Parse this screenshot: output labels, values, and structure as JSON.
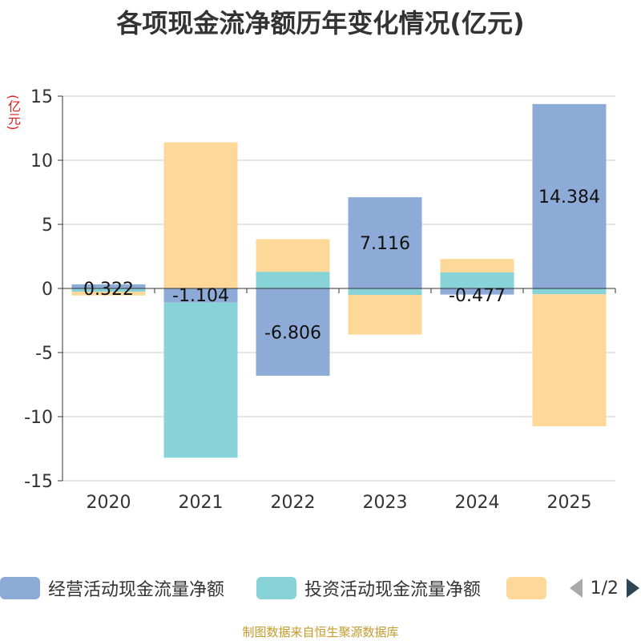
{
  "title": "各项现金流净额历年变化情况(亿元)",
  "unit_label": "(亿元)",
  "colors": {
    "operating": "#8eabd8",
    "investing": "#87d3d8",
    "financing": "#fdd898",
    "unit_text": "#e01e1e",
    "source_text": "#c49a2c"
  },
  "chart_data": {
    "type": "bar",
    "stacked": true,
    "title": "各项现金流净额历年变化情况(亿元)",
    "xlabel": "",
    "ylabel": "(亿元)",
    "ylim": [
      -15,
      15
    ],
    "yticks": [
      15,
      10,
      5,
      0,
      -5,
      -10,
      -15
    ],
    "grid": true,
    "categories": [
      "2020",
      "2021",
      "2022",
      "2023",
      "2024",
      "2025"
    ],
    "series": [
      {
        "name": "经营活动现金流量净额",
        "key": "operating",
        "values": [
          0.322,
          -1.104,
          -6.806,
          7.116,
          -0.477,
          14.384
        ],
        "labeled": true
      },
      {
        "name": "投资活动现金流量净额",
        "key": "investing",
        "values": [
          -0.25,
          -12.1,
          1.3,
          -0.5,
          1.25,
          -0.45
        ],
        "labeled": false
      },
      {
        "name": "",
        "key": "financing",
        "values": [
          -0.3,
          11.4,
          2.55,
          -3.1,
          1.05,
          -10.3
        ],
        "labeled": false
      }
    ],
    "data_labels": [
      "0.322",
      "-1.104",
      "-6.806",
      "7.116",
      "-0.477",
      "14.384"
    ]
  },
  "legend": {
    "items": [
      {
        "label": "经营活动现金流量净额",
        "icon": "legend-swatch"
      },
      {
        "label": "投资活动现金流量净额",
        "icon": "legend-swatch"
      },
      {
        "label": "",
        "icon": "legend-swatch"
      }
    ],
    "page_text": "1/2",
    "prev_icon": "triangle-left-icon",
    "next_icon": "triangle-right-icon"
  },
  "source": "制图数据来自恒生聚源数据库"
}
